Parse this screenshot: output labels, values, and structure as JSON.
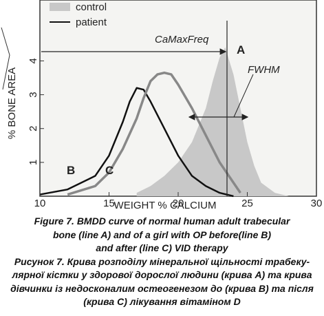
{
  "chart_data": {
    "type": "line",
    "xlabel": "WEIGHT % CALCIUM",
    "ylabel": "% BONE AREA",
    "xlim": [
      10,
      30
    ],
    "ylim": [
      0,
      5.8
    ],
    "xticks": [
      10,
      15,
      20,
      25,
      30
    ],
    "yticks": [
      1,
      2,
      3,
      4
    ],
    "legend": [
      {
        "label": "control",
        "color": "#c8c8c8"
      },
      {
        "label": "patient",
        "color": "#111111"
      }
    ],
    "annotations": [
      "CaMaxFreq",
      "A",
      "B",
      "C",
      "FWHM"
    ],
    "series": [
      {
        "name": "control",
        "color": "#c8c8c8",
        "fill": true,
        "x": [
          17,
          18,
          19,
          20,
          21,
          22,
          22.5,
          23,
          23.4,
          24,
          24.5,
          25,
          25.5,
          26,
          27,
          28
        ],
        "values": [
          0.1,
          0.3,
          0.6,
          1.0,
          1.6,
          2.6,
          3.4,
          4.1,
          4.4,
          3.6,
          2.6,
          1.6,
          0.9,
          0.4,
          0.1,
          0
        ]
      },
      {
        "name": "B",
        "color": "#111111",
        "width": 2.5,
        "x": [
          10,
          12,
          14,
          15,
          16,
          16.5,
          17,
          17.5,
          18,
          19,
          20,
          21,
          22,
          23,
          24
        ],
        "values": [
          0.05,
          0.2,
          0.6,
          1.2,
          2.2,
          2.8,
          3.2,
          3.15,
          2.8,
          2.0,
          1.2,
          0.6,
          0.3,
          0.1,
          0
        ]
      },
      {
        "name": "C",
        "color": "#888888",
        "width": 3.5,
        "x": [
          12,
          14,
          15,
          16,
          17,
          17.5,
          18,
          18.5,
          19,
          19.5,
          20,
          21,
          22,
          23,
          24,
          24.5
        ],
        "values": [
          0.05,
          0.3,
          0.7,
          1.4,
          2.3,
          2.9,
          3.4,
          3.6,
          3.65,
          3.6,
          3.3,
          2.6,
          1.8,
          1.0,
          0.4,
          0.1
        ]
      }
    ]
  },
  "caption": {
    "en": [
      "Figure 7. BMDD curve of normal human adult trabecular",
      "bone (line A) and of a girl with OP before(line B)",
      "and after (line C) VID therapy"
    ],
    "uk": [
      "Рисунок 7. Крива розподілу мінеральної щільності трабеку-",
      "лярної кістки у здорової дорослої людини (крива А) та крива",
      "дівчинки із недосконалим остеогенезом до (крива В) та після",
      "(крива С) лікування вітаміном D"
    ]
  }
}
